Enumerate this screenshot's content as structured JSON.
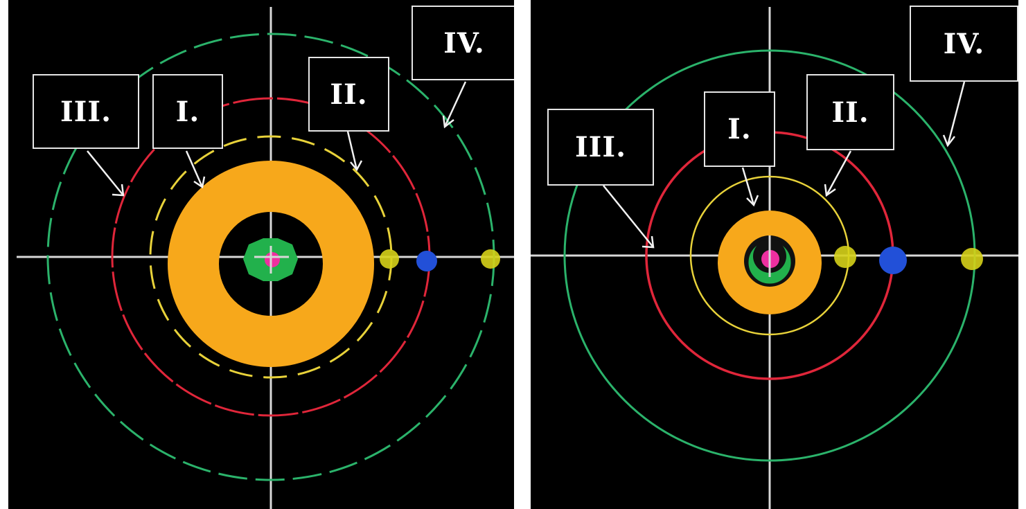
{
  "panels": [
    {
      "id": "left",
      "labels": [
        "III.",
        "I.",
        "II.",
        "IV."
      ],
      "orbit_colors": {
        "I": "#e8d23a",
        "III": "#e0263a",
        "IV": "#2bb36b"
      },
      "ring_color": "#f7a81b",
      "core_colors": {
        "inner": "#22b14c",
        "center": "#ee2fa0"
      },
      "marker_colors": {
        "yellow": "#d6d21a",
        "blue": "#2250d8"
      },
      "orbit_style": "dashed"
    },
    {
      "id": "right",
      "labels": [
        "III.",
        "I.",
        "II.",
        "IV."
      ],
      "orbit_colors": {
        "I": "#e8d23a",
        "III": "#e0263a",
        "IV": "#2bb36b"
      },
      "ring_color": "#f7a81b",
      "core_colors": {
        "inner": "#22b14c",
        "center": "#ee2fa0"
      },
      "marker_colors": {
        "yellow": "#d6d21a",
        "blue": "#2250d8"
      },
      "orbit_style": "solid"
    }
  ]
}
